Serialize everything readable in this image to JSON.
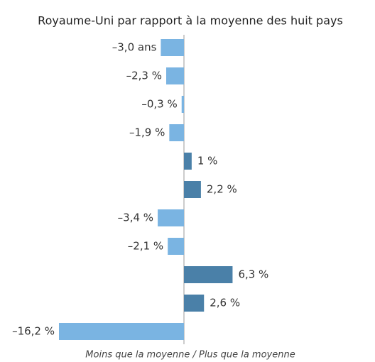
{
  "chart_data": {
    "type": "bar",
    "orientation": "horizontal",
    "title": "Royaume-Uni par rapport à la moyenne des huit pays",
    "values": [
      -3.0,
      -2.3,
      -0.3,
      -1.9,
      1,
      2.2,
      -3.4,
      -2.1,
      6.3,
      2.6,
      -16.2
    ],
    "value_labels": [
      "–3,0 ans",
      "–2,3 %",
      "–0,3 %",
      "–1,9 %",
      "1 %",
      "2,2 %",
      "–3,4 %",
      "–2,1 %",
      "6,3 %",
      "2,6 %",
      "–16,2 %"
    ],
    "colors": {
      "negative": "#7ab4e2",
      "positive": "#4a80a8"
    },
    "xlabel": "Moins que la moyenne / Plus que la moyenne"
  }
}
